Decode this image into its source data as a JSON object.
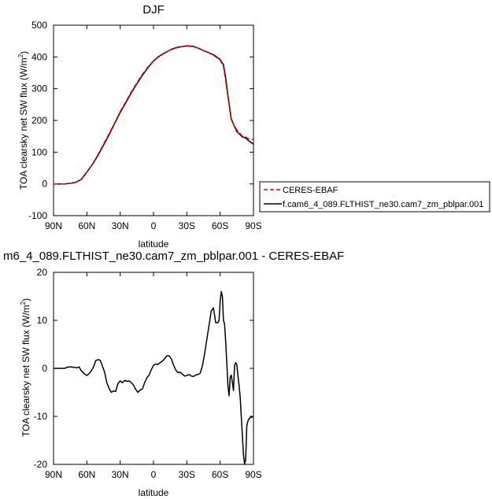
{
  "chart_data": [
    {
      "type": "line",
      "title": "DJF",
      "xlabel": "latitude",
      "ylabel": "TOA clearsky net SW flux (W/m²)",
      "xlim": [
        90,
        -90
      ],
      "ylim": [
        -100,
        500
      ],
      "x_ticks": [
        {
          "value": 90,
          "label": "90N"
        },
        {
          "value": 60,
          "label": "60N"
        },
        {
          "value": 30,
          "label": "30N"
        },
        {
          "value": 0,
          "label": "0"
        },
        {
          "value": -30,
          "label": "30S"
        },
        {
          "value": -60,
          "label": "60S"
        },
        {
          "value": -90,
          "label": "90S"
        }
      ],
      "y_ticks": [
        {
          "value": -100,
          "label": "-100"
        },
        {
          "value": 0,
          "label": "0"
        },
        {
          "value": 100,
          "label": "100"
        },
        {
          "value": 200,
          "label": "200"
        },
        {
          "value": 300,
          "label": "300"
        },
        {
          "value": 400,
          "label": "400"
        },
        {
          "value": 500,
          "label": "500"
        }
      ],
      "legend_placement": "outside-right",
      "series": [
        {
          "name": "CERES-EBAF",
          "color": "#dd0000",
          "dash": "dashed",
          "x": [
            90,
            85,
            80,
            75,
            70,
            65,
            60,
            55,
            50,
            45,
            40,
            35,
            30,
            25,
            20,
            15,
            10,
            5,
            0,
            -5,
            -10,
            -15,
            -20,
            -25,
            -30,
            -35,
            -40,
            -45,
            -50,
            -55,
            -60,
            -63,
            -65,
            -67,
            -70,
            -73,
            -75,
            -78,
            -80,
            -83,
            -85,
            -88,
            -90
          ],
          "values": [
            0,
            0,
            0,
            2,
            5,
            15,
            38,
            62,
            92,
            125,
            158,
            192,
            228,
            258,
            290,
            318,
            345,
            368,
            388,
            403,
            413,
            422,
            428,
            432,
            434,
            433,
            428,
            420,
            413,
            403,
            390,
            370,
            325,
            275,
            200,
            183,
            170,
            158,
            150,
            148,
            143,
            140,
            140
          ]
        },
        {
          "name": "f.cam6_4_089.FLTHIST_ne30.cam7_zm_pblpar.001",
          "color": "#000000",
          "dash": "solid",
          "x": [
            90,
            85,
            80,
            75,
            70,
            65,
            60,
            55,
            50,
            45,
            40,
            35,
            30,
            25,
            20,
            15,
            10,
            5,
            0,
            -5,
            -10,
            -15,
            -20,
            -25,
            -30,
            -35,
            -40,
            -45,
            -50,
            -55,
            -60,
            -63,
            -65,
            -67,
            -70,
            -73,
            -75,
            -78,
            -80,
            -83,
            -85,
            -88,
            -90
          ],
          "values": [
            0,
            0,
            0,
            2,
            5,
            14,
            37,
            61,
            90,
            122,
            155,
            190,
            225,
            255,
            287,
            315,
            342,
            366,
            387,
            402,
            412,
            422,
            429,
            432,
            435,
            434,
            428,
            420,
            413,
            405,
            392,
            375,
            335,
            280,
            205,
            180,
            165,
            155,
            148,
            145,
            138,
            130,
            125
          ]
        }
      ]
    },
    {
      "type": "line",
      "title": "m6_4_089.FLTHIST_ne30.cam7_zm_pblpar.001 - CERES-EBAF",
      "xlabel": "latitude",
      "ylabel": "TOA clearsky net SW flux (W/m²)",
      "xlim": [
        90,
        -90
      ],
      "ylim": [
        -20,
        20
      ],
      "x_ticks": [
        {
          "value": 90,
          "label": "90N"
        },
        {
          "value": 60,
          "label": "60N"
        },
        {
          "value": 30,
          "label": "30N"
        },
        {
          "value": 0,
          "label": "0"
        },
        {
          "value": -30,
          "label": "30S"
        },
        {
          "value": -60,
          "label": "60S"
        },
        {
          "value": -90,
          "label": "90S"
        }
      ],
      "y_ticks": [
        {
          "value": -20,
          "label": "-20"
        },
        {
          "value": -10,
          "label": "-10"
        },
        {
          "value": 0,
          "label": "0"
        },
        {
          "value": 10,
          "label": "10"
        },
        {
          "value": 20,
          "label": "20"
        }
      ],
      "series": [
        {
          "color": "#000000",
          "dash": "solid",
          "x": [
            90,
            85,
            80,
            77,
            74,
            71,
            69,
            67,
            65,
            62,
            60,
            58,
            56,
            54,
            52,
            50,
            48,
            46,
            44,
            42,
            40,
            38,
            36,
            34,
            32,
            30,
            28,
            26,
            24,
            22,
            20,
            18,
            16,
            14,
            12,
            10,
            8,
            6,
            4,
            2,
            0,
            -2,
            -4,
            -6,
            -8,
            -10,
            -12,
            -14,
            -16,
            -18,
            -20,
            -22,
            -24,
            -26,
            -28,
            -30,
            -32,
            -34,
            -36,
            -38,
            -40,
            -42,
            -44,
            -46,
            -48,
            -50,
            -52,
            -54,
            -56,
            -58,
            -59,
            -60,
            -61,
            -62,
            -63,
            -64,
            -65,
            -66,
            -67,
            -68,
            -69,
            -70,
            -71,
            -72,
            -73,
            -74,
            -75,
            -76,
            -77,
            -78,
            -79,
            -80,
            -81,
            -82,
            -83,
            -84,
            -85,
            -86,
            -87,
            -88,
            -89,
            -90
          ],
          "values": [
            0,
            0,
            0,
            0.3,
            0.3,
            0.2,
            0.1,
            0.3,
            -0.5,
            -1.2,
            -1.5,
            -1.1,
            -0.5,
            0.3,
            1.6,
            1.8,
            1.7,
            0.5,
            -0.8,
            -3,
            -4.2,
            -5,
            -4.7,
            -4.8,
            -3.2,
            -2.6,
            -3,
            -2.5,
            -2.7,
            -2.6,
            -3,
            -3.5,
            -4.4,
            -5,
            -4.5,
            -4.3,
            -3,
            -2,
            -1.4,
            -0.3,
            0.6,
            0.9,
            0.8,
            1.2,
            1.5,
            2,
            2.6,
            2.6,
            2,
            0.7,
            -0.3,
            -0.9,
            -0.8,
            -1.2,
            -1.6,
            -1.5,
            -1.3,
            -1.6,
            -1.7,
            -1.4,
            -1.3,
            -1,
            0.5,
            3,
            6,
            9,
            12,
            12.6,
            9.5,
            9.5,
            10,
            14,
            16,
            15,
            10,
            9.2,
            5.6,
            1.2,
            -3.5,
            -5.7,
            -1.9,
            -1.4,
            -3,
            -4.6,
            0.6,
            1.2,
            0.8,
            -1.5,
            -3.5,
            -6,
            -10,
            -14,
            -18,
            -20,
            -19,
            -12,
            -11,
            -10.5,
            -10.3,
            -10.2,
            -10.1,
            -10
          ]
        }
      ]
    }
  ]
}
